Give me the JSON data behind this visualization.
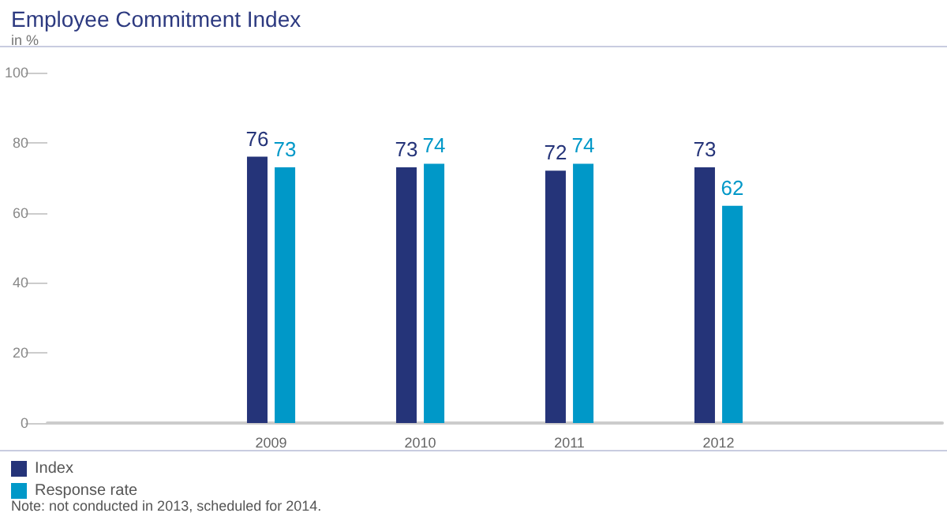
{
  "chart_data": {
    "type": "bar",
    "title": "Employee Commitment Index",
    "subtitle": "in %",
    "categories": [
      null,
      "2009",
      "2010",
      "2011",
      "2012",
      null
    ],
    "series": [
      {
        "name": "Index",
        "color": "#253479",
        "values": [
          null,
          76,
          73,
          72,
          73,
          null
        ]
      },
      {
        "name": "Response rate",
        "color": "#0098c8",
        "values": [
          null,
          73,
          74,
          74,
          62,
          null
        ]
      }
    ],
    "ylim": [
      0,
      100
    ],
    "yticks": [
      0,
      20,
      40,
      60,
      80,
      100
    ],
    "grid": false,
    "legend": "bottom left",
    "data_labels": true,
    "annotations": [
      "Note: not conducted in 2013, scheduled for 2014."
    ]
  }
}
